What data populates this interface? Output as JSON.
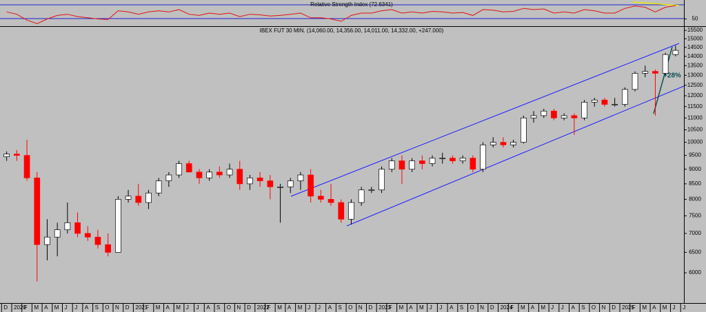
{
  "chart_data": {
    "type": "candlestick",
    "title": "IBEX FUT 30 MIN. (14,060.00, 14,356.00, 14,011.00, 14,332.00, +247.000)",
    "categories": [
      "D",
      "2020",
      "F",
      "M",
      "A",
      "M",
      "J",
      "J",
      "A",
      "S",
      "O",
      "N",
      "D",
      "2021",
      "F",
      "M",
      "A",
      "M",
      "J",
      "J",
      "A",
      "S",
      "O",
      "N",
      "D",
      "2022",
      "F",
      "M",
      "A",
      "M",
      "J",
      "J",
      "A",
      "S",
      "O",
      "N",
      "D",
      "2023",
      "F",
      "M",
      "A",
      "M",
      "J",
      "J",
      "A",
      "S",
      "O",
      "N",
      "D",
      "2024",
      "F",
      "M",
      "A",
      "M",
      "J",
      "J",
      "A",
      "S",
      "O",
      "N",
      "D",
      "2025",
      "F",
      "M",
      "A",
      "M",
      "J",
      "J"
    ],
    "open": [
      9450,
      9550,
      9500,
      8700,
      6700,
      6900,
      7100,
      7300,
      7000,
      6900,
      6700,
      6500,
      8000,
      8100,
      7900,
      8200,
      8600,
      8800,
      9200,
      8900,
      8700,
      8900,
      8800,
      9000,
      8500,
      8700,
      8600,
      8400,
      8400,
      8600,
      8800,
      8100,
      8000,
      7900,
      7400,
      7900,
      8300,
      8300,
      9000,
      9300,
      9000,
      9300,
      9200,
      9400,
      9400,
      9300,
      9400,
      9000,
      9900,
      10000,
      9900,
      10000,
      11000,
      11100,
      11300,
      11000,
      11100,
      11000,
      11700,
      11800,
      11600,
      11600,
      12300,
      13100,
      13200,
      13100,
      14100,
      null
    ],
    "high": [
      9650,
      9700,
      10100,
      8900,
      7400,
      7300,
      7900,
      7600,
      7200,
      7100,
      7000,
      8100,
      8300,
      8500,
      8300,
      8700,
      8900,
      9300,
      9300,
      9000,
      9000,
      9100,
      9200,
      9300,
      8800,
      8900,
      8800,
      8500,
      8700,
      8900,
      9000,
      8300,
      8500,
      8000,
      8000,
      8400,
      8400,
      9100,
      9400,
      9500,
      9400,
      9500,
      9500,
      9600,
      9500,
      9500,
      9500,
      10000,
      10200,
      10200,
      10100,
      11100,
      11300,
      11400,
      11400,
      11200,
      11200,
      11800,
      11900,
      11900,
      11900,
      12400,
      13200,
      13500,
      13300,
      14200,
      14600,
      null
    ],
    "low": [
      9300,
      9300,
      8600,
      5800,
      6300,
      6400,
      7000,
      6900,
      6800,
      6600,
      6400,
      6500,
      7900,
      7800,
      7700,
      8100,
      8400,
      8700,
      8900,
      8500,
      8600,
      8700,
      8700,
      8300,
      8300,
      8400,
      8000,
      7300,
      8200,
      8300,
      7900,
      7900,
      7800,
      7300,
      7250,
      7800,
      8200,
      8200,
      8900,
      8500,
      8900,
      9000,
      9100,
      9200,
      9200,
      9200,
      8900,
      8900,
      9800,
      9800,
      9800,
      9950,
      10800,
      11000,
      10900,
      10900,
      10300,
      10900,
      11500,
      11500,
      11500,
      11500,
      12200,
      12900,
      11100,
      13000,
      14000,
      null
    ],
    "close": [
      9550,
      9500,
      8700,
      6700,
      6900,
      7100,
      7300,
      7000,
      6900,
      6700,
      6500,
      8000,
      8100,
      7900,
      8200,
      8600,
      8800,
      9200,
      8900,
      8700,
      8900,
      8800,
      9000,
      8500,
      8700,
      8600,
      8400,
      8400,
      8600,
      8800,
      8100,
      8000,
      7900,
      7400,
      7900,
      8300,
      8300,
      9000,
      9300,
      9000,
      9300,
      9200,
      9400,
      9400,
      9300,
      9400,
      9000,
      9900,
      10000,
      9900,
      10000,
      11000,
      11100,
      11300,
      11000,
      11100,
      11000,
      11700,
      11800,
      11600,
      11600,
      12300,
      13100,
      13200,
      13100,
      14100,
      14332,
      null
    ],
    "up_color": "#ffffff",
    "down_color": "#ff0000",
    "log_scale": true,
    "ylim": [
      5330,
      15670
    ],
    "yticks": [
      15500,
      15000,
      14500,
      14000,
      13500,
      13000,
      12500,
      12000,
      11500,
      11000,
      10500,
      10000,
      9500,
      9000,
      8500,
      8000,
      7500,
      7000,
      6500,
      6000
    ],
    "annotations": [
      "+28%"
    ],
    "rsi": {
      "title": "Relative Strength Index (72.6341)",
      "color": "#e01010",
      "ylim": [
        40,
        80
      ],
      "yticks": [
        50
      ],
      "values": [
        62,
        58,
        48,
        42,
        50,
        56,
        58,
        54,
        52,
        50,
        49,
        64,
        62,
        58,
        62,
        64,
        62,
        66,
        58,
        56,
        60,
        58,
        60,
        54,
        58,
        57,
        55,
        56,
        58,
        60,
        52,
        52,
        50,
        46,
        56,
        60,
        60,
        64,
        66,
        60,
        62,
        60,
        63,
        62,
        60,
        61,
        56,
        66,
        65,
        62,
        63,
        68,
        66,
        67,
        60,
        62,
        60,
        66,
        64,
        60,
        60,
        68,
        72,
        70,
        62,
        70,
        72.6341,
        null
      ]
    }
  }
}
